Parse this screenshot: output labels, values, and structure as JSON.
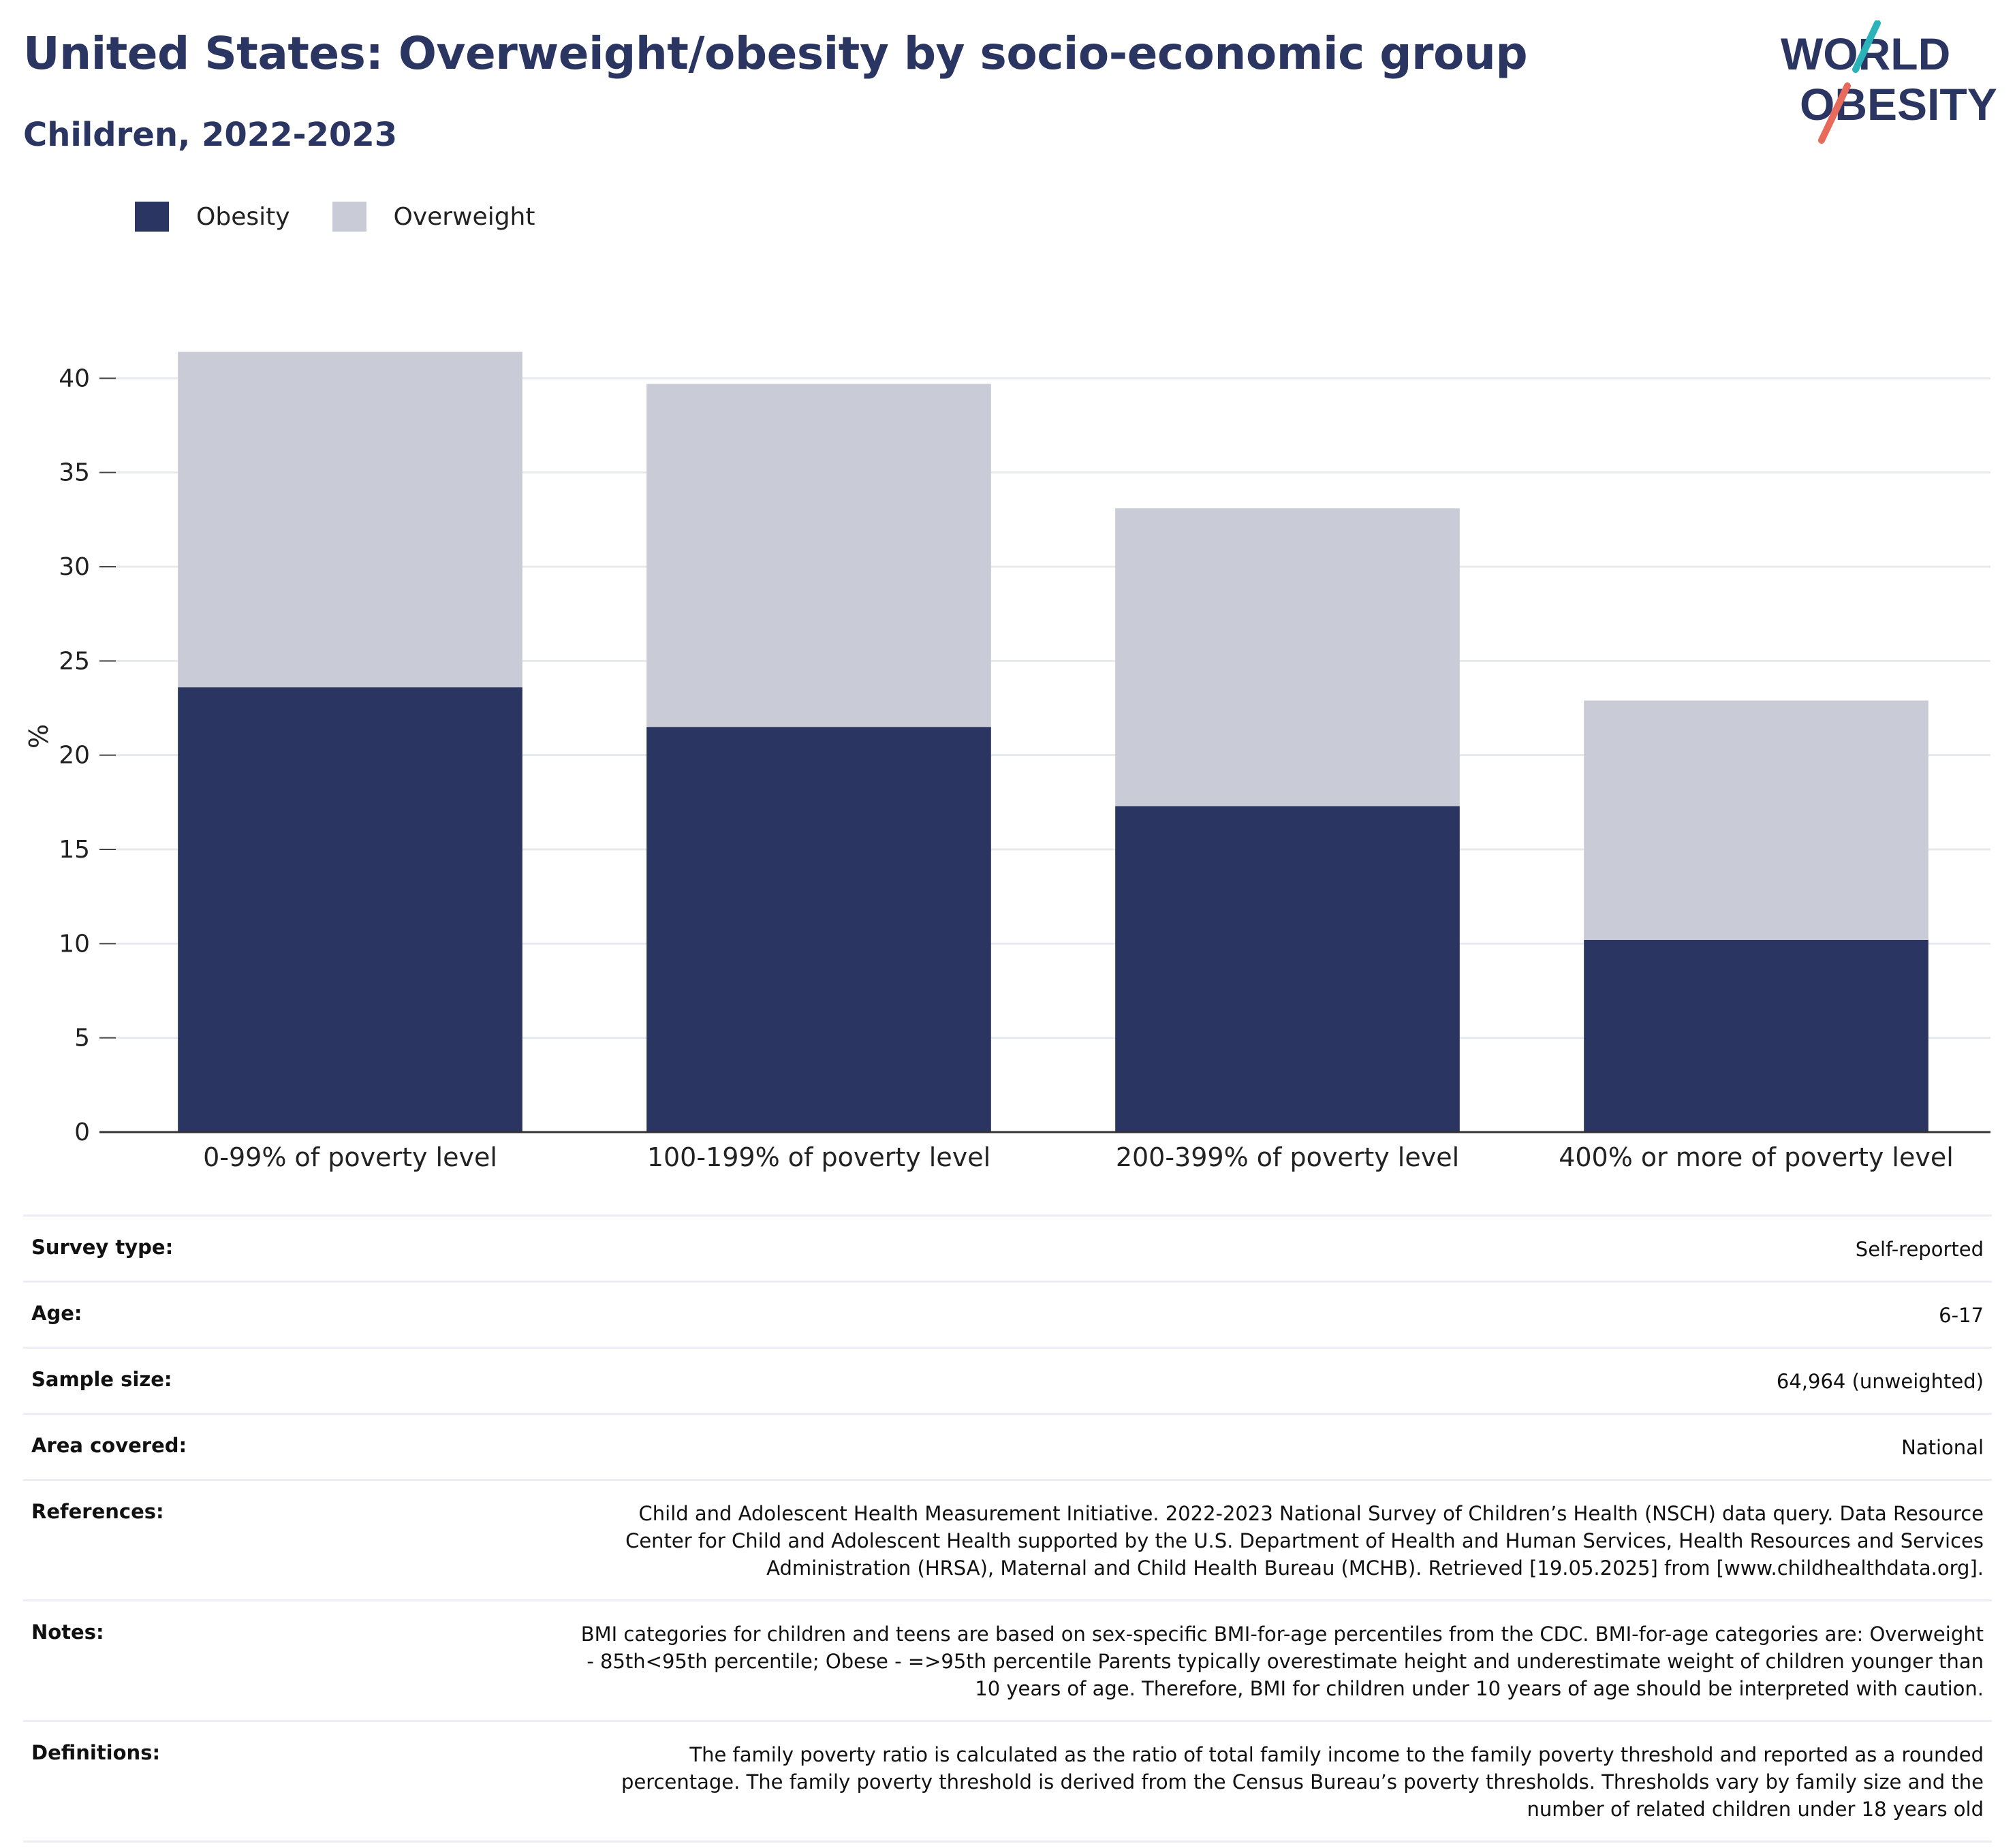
{
  "header": {
    "title": "United States: Overweight/obesity by socio-economic group",
    "subtitle": "Children, 2022-2023"
  },
  "logo": {
    "line1": "WORLD",
    "line2": "OBESITY"
  },
  "colors": {
    "obesity": "#2b3562",
    "overweight": "#c9cbd7",
    "brand": "#2b3562",
    "accent_teal": "#2ab3b8",
    "accent_coral": "#e86a5a"
  },
  "legend": [
    {
      "label": "Obesity",
      "color": "#2b3562"
    },
    {
      "label": "Overweight",
      "color": "#c9cbd7"
    }
  ],
  "chart_data": {
    "type": "bar",
    "stacked": true,
    "categories": [
      "0-99% of poverty level",
      "100-199% of poverty level",
      "200-399% of poverty level",
      "400% or more of poverty level"
    ],
    "series": [
      {
        "name": "Obesity",
        "values": [
          23.6,
          21.5,
          17.3,
          10.2
        ]
      },
      {
        "name": "Overweight",
        "values": [
          17.8,
          18.2,
          15.8,
          12.7
        ]
      }
    ],
    "ylabel": "%",
    "ylim": [
      0,
      42
    ],
    "yticks": [
      0,
      5,
      10,
      15,
      20,
      25,
      30,
      35,
      40
    ],
    "grid": true,
    "legend_position": "top-left"
  },
  "meta": [
    {
      "key": "Survey type:",
      "value": "Self-reported"
    },
    {
      "key": "Age:",
      "value": "6-17"
    },
    {
      "key": "Sample size:",
      "value": "64,964 (unweighted)"
    },
    {
      "key": "Area covered:",
      "value": "National"
    },
    {
      "key": "References:",
      "value": "Child and Adolescent Health Measurement Initiative. 2022-2023 National Survey of Children’s Health (NSCH) data query. Data Resource Center for Child and Adolescent Health supported by the U.S. Department of Health and Human Services, Health Resources and Services Administration (HRSA), Maternal and Child Health Bureau (MCHB). Retrieved [19.05.2025] from [www.childhealthdata.org]."
    },
    {
      "key": "Notes:",
      "value": "BMI categories for children and teens are based on sex-specific BMI-for-age percentiles from the CDC. BMI-for-age categories are: Overweight - 85th<95th percentile; Obese - =>95th percentile Parents typically overestimate height and underestimate weight of children younger than 10 years of age. Therefore, BMI for children under 10 years of age should be interpreted with caution."
    },
    {
      "key": "Definitions:",
      "value": "The family poverty ratio is calculated as the ratio of total family income to the family poverty threshold and reported as a rounded percentage. The family poverty threshold is derived from the Census Bureau’s poverty thresholds. Thresholds vary by family size and the number of related children under 18 years old"
    }
  ]
}
